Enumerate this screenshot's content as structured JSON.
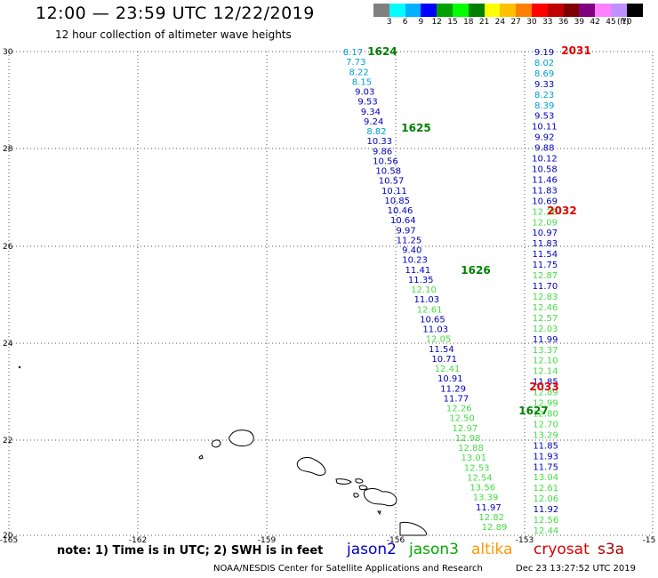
{
  "header": {
    "title": "12:00 — 23:59 UTC 12/22/2019",
    "subtitle": "12 hour collection of altimeter wave heights"
  },
  "scale": {
    "unit_label": "(ft)",
    "swatches": [
      {
        "color": "#808080",
        "label": "3"
      },
      {
        "color": "#00ffff",
        "label": "6"
      },
      {
        "color": "#00b0ff",
        "label": "9"
      },
      {
        "color": "#0000ff",
        "label": "12"
      },
      {
        "color": "#00a000",
        "label": "15"
      },
      {
        "color": "#00ff00",
        "label": "18"
      },
      {
        "color": "#008000",
        "label": "21"
      },
      {
        "color": "#ffff00",
        "label": "24"
      },
      {
        "color": "#ffc000",
        "label": "27"
      },
      {
        "color": "#ff8000",
        "label": "30"
      },
      {
        "color": "#ff0000",
        "label": "33"
      },
      {
        "color": "#c00000",
        "label": "36"
      },
      {
        "color": "#800000",
        "label": "39"
      },
      {
        "color": "#800080",
        "label": "42"
      },
      {
        "color": "#ff80ff",
        "label": "45"
      },
      {
        "color": "#c090ff",
        "label": "70"
      },
      {
        "color": "#000000",
        "label": ""
      }
    ]
  },
  "axes": {
    "lon_ticks": [
      "-165",
      "-162",
      "-159",
      "-156",
      "-153",
      "-15"
    ],
    "lat_ticks": [
      "30",
      "28",
      "26",
      "24",
      "22",
      "20"
    ]
  },
  "tracks": {
    "left": [
      {
        "v": "8.17",
        "c": "#00a0d0"
      },
      {
        "v": "7.73",
        "c": "#00a0d0"
      },
      {
        "v": "8.22",
        "c": "#00a0d0"
      },
      {
        "v": "8.15",
        "c": "#00a0d0"
      },
      {
        "v": "9.03",
        "c": "#0000c0"
      },
      {
        "v": "9.53",
        "c": "#0000c0"
      },
      {
        "v": "9.34",
        "c": "#0000c0"
      },
      {
        "v": "9.24",
        "c": "#0000c0"
      },
      {
        "v": "8.82",
        "c": "#00a0d0"
      },
      {
        "v": "10.33",
        "c": "#0000c0"
      },
      {
        "v": "9.86",
        "c": "#0000c0"
      },
      {
        "v": "10.56",
        "c": "#0000c0"
      },
      {
        "v": "10.58",
        "c": "#0000c0"
      },
      {
        "v": "10.57",
        "c": "#0000c0"
      },
      {
        "v": "10.11",
        "c": "#0000c0"
      },
      {
        "v": "10.85",
        "c": "#0000c0"
      },
      {
        "v": "10.46",
        "c": "#0000c0"
      },
      {
        "v": "10.64",
        "c": "#0000c0"
      },
      {
        "v": "9.97",
        "c": "#0000c0"
      },
      {
        "v": "11.25",
        "c": "#0000c0"
      },
      {
        "v": "9.40",
        "c": "#0000c0"
      },
      {
        "v": "10.23",
        "c": "#0000c0"
      },
      {
        "v": "11.41",
        "c": "#0000c0"
      },
      {
        "v": "11.35",
        "c": "#0000c0"
      },
      {
        "v": "12.10",
        "c": "#44dd44"
      },
      {
        "v": "11.03",
        "c": "#0000c0"
      },
      {
        "v": "12.61",
        "c": "#44dd44"
      },
      {
        "v": "10.65",
        "c": "#0000c0"
      },
      {
        "v": "11.03",
        "c": "#0000c0"
      },
      {
        "v": "12.05",
        "c": "#44dd44"
      },
      {
        "v": "11.54",
        "c": "#0000c0"
      },
      {
        "v": "10.71",
        "c": "#0000c0"
      },
      {
        "v": "12.41",
        "c": "#44dd44"
      },
      {
        "v": "10.91",
        "c": "#0000c0"
      },
      {
        "v": "11.29",
        "c": "#0000c0"
      },
      {
        "v": "11.77",
        "c": "#0000c0"
      },
      {
        "v": "12.26",
        "c": "#44dd44"
      },
      {
        "v": "12.50",
        "c": "#44dd44"
      },
      {
        "v": "12.97",
        "c": "#44dd44"
      },
      {
        "v": "12.98",
        "c": "#44dd44"
      },
      {
        "v": "12.88",
        "c": "#44dd44"
      },
      {
        "v": "13.01",
        "c": "#44dd44"
      },
      {
        "v": "12.53",
        "c": "#44dd44"
      },
      {
        "v": "12.54",
        "c": "#44dd44"
      },
      {
        "v": "13.56",
        "c": "#44dd44"
      },
      {
        "v": "13.39",
        "c": "#44dd44"
      },
      {
        "v": "11.97",
        "c": "#0000c0"
      },
      {
        "v": "12.82",
        "c": "#44dd44"
      },
      {
        "v": "12.89",
        "c": "#44dd44"
      }
    ],
    "right": [
      {
        "v": "9.19",
        "c": "#0000c0"
      },
      {
        "v": "8.02",
        "c": "#00a0d0"
      },
      {
        "v": "8.69",
        "c": "#00a0d0"
      },
      {
        "v": "9.33",
        "c": "#0000c0"
      },
      {
        "v": "8.23",
        "c": "#00a0d0"
      },
      {
        "v": "8.39",
        "c": "#00a0d0"
      },
      {
        "v": "9.53",
        "c": "#0000c0"
      },
      {
        "v": "10.11",
        "c": "#0000c0"
      },
      {
        "v": "9.92",
        "c": "#0000c0"
      },
      {
        "v": "9.88",
        "c": "#0000c0"
      },
      {
        "v": "10.12",
        "c": "#0000c0"
      },
      {
        "v": "10.58",
        "c": "#0000c0"
      },
      {
        "v": "11.46",
        "c": "#0000c0"
      },
      {
        "v": "11.83",
        "c": "#0000c0"
      },
      {
        "v": "10.69",
        "c": "#0000c0"
      },
      {
        "v": "12.26",
        "c": "#44dd44"
      },
      {
        "v": "12.09",
        "c": "#44dd44"
      },
      {
        "v": "10.97",
        "c": "#0000c0"
      },
      {
        "v": "11.83",
        "c": "#0000c0"
      },
      {
        "v": "11.54",
        "c": "#0000c0"
      },
      {
        "v": "11.75",
        "c": "#0000c0"
      },
      {
        "v": "12.87",
        "c": "#44dd44"
      },
      {
        "v": "11.70",
        "c": "#0000c0"
      },
      {
        "v": "12.83",
        "c": "#44dd44"
      },
      {
        "v": "12.46",
        "c": "#44dd44"
      },
      {
        "v": "12.57",
        "c": "#44dd44"
      },
      {
        "v": "12.03",
        "c": "#44dd44"
      },
      {
        "v": "11.99",
        "c": "#0000c0"
      },
      {
        "v": "13.37",
        "c": "#44dd44"
      },
      {
        "v": "12.10",
        "c": "#44dd44"
      },
      {
        "v": "12.14",
        "c": "#44dd44"
      },
      {
        "v": "11.85",
        "c": "#0000c0"
      },
      {
        "v": "12.89",
        "c": "#44dd44"
      },
      {
        "v": "12.99",
        "c": "#44dd44"
      },
      {
        "v": "12.80",
        "c": "#44dd44"
      },
      {
        "v": "12.70",
        "c": "#44dd44"
      },
      {
        "v": "13.29",
        "c": "#44dd44"
      },
      {
        "v": "11.85",
        "c": "#0000c0"
      },
      {
        "v": "11.93",
        "c": "#0000c0"
      },
      {
        "v": "11.75",
        "c": "#0000c0"
      },
      {
        "v": "13.04",
        "c": "#44dd44"
      },
      {
        "v": "12.61",
        "c": "#44dd44"
      },
      {
        "v": "12.06",
        "c": "#44dd44"
      },
      {
        "v": "11.92",
        "c": "#0000c0"
      },
      {
        "v": "12.56",
        "c": "#44dd44"
      },
      {
        "v": "12.44",
        "c": "#44dd44"
      }
    ]
  },
  "time_labels": [
    {
      "text": "1624",
      "color": "#008000"
    },
    {
      "text": "1625",
      "color": "#008000"
    },
    {
      "text": "1626",
      "color": "#008000"
    },
    {
      "text": "1627",
      "color": "#008000"
    },
    {
      "text": "2031",
      "color": "#e00000"
    },
    {
      "text": "2032",
      "color": "#e00000"
    },
    {
      "text": "2033",
      "color": "#e00000"
    }
  ],
  "note": "note: 1) Time is in UTC; 2) SWH is in feet",
  "missions": [
    {
      "name": "jason2",
      "color": "#0000cc"
    },
    {
      "name": "jason3",
      "color": "#00aa00"
    },
    {
      "name": "altika",
      "color": "#ff9900"
    },
    {
      "name": "cryosat",
      "color": "#dd0000"
    },
    {
      "name": "s3a",
      "color": "#aa0000"
    }
  ],
  "footer": {
    "credit": "NOAA/NESDIS Center for Satellite Applications and Research",
    "timestamp": "Dec 23 13:27:52 UTC 2019"
  }
}
